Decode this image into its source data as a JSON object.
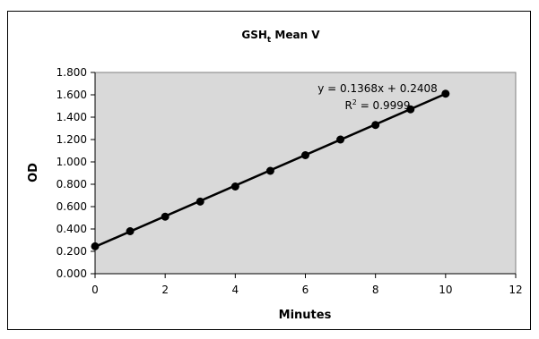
{
  "chart_data": {
    "type": "scatter",
    "title": "GSH",
    "title_subscript": "t",
    "title_suffix": " Mean V",
    "xlabel": "Minutes",
    "ylabel": "OD",
    "xlim": [
      0,
      12
    ],
    "ylim": [
      0,
      1.8
    ],
    "x_ticks": [
      0,
      2,
      4,
      6,
      8,
      10,
      12
    ],
    "y_ticks": [
      0,
      0.2,
      0.4,
      0.6,
      0.8,
      1.0,
      1.2,
      1.4,
      1.6,
      1.8
    ],
    "x_tick_labels": [
      "0",
      "2",
      "4",
      "6",
      "8",
      "10",
      "12"
    ],
    "y_tick_labels": [
      "0.000",
      "0.200",
      "0.400",
      "0.600",
      "0.800",
      "1.000",
      "1.200",
      "1.400",
      "1.600",
      "1.800"
    ],
    "grid": false,
    "plot_background": "#d9d9d9",
    "marker_color": "#000000",
    "line_color": "#000000",
    "points": {
      "x": [
        0,
        1,
        2,
        3,
        4,
        5,
        6,
        7,
        8,
        9,
        10
      ],
      "y": [
        0.245,
        0.38,
        0.51,
        0.645,
        0.78,
        0.92,
        1.06,
        1.2,
        1.33,
        1.47,
        1.61
      ]
    },
    "trendline": {
      "slope": 0.1368,
      "intercept": 0.2408,
      "equation": "y = 0.1368x + 0.2408",
      "r2_prefix": "R",
      "r2_superscript": "2",
      "r2_suffix": " = 0.9999"
    }
  }
}
